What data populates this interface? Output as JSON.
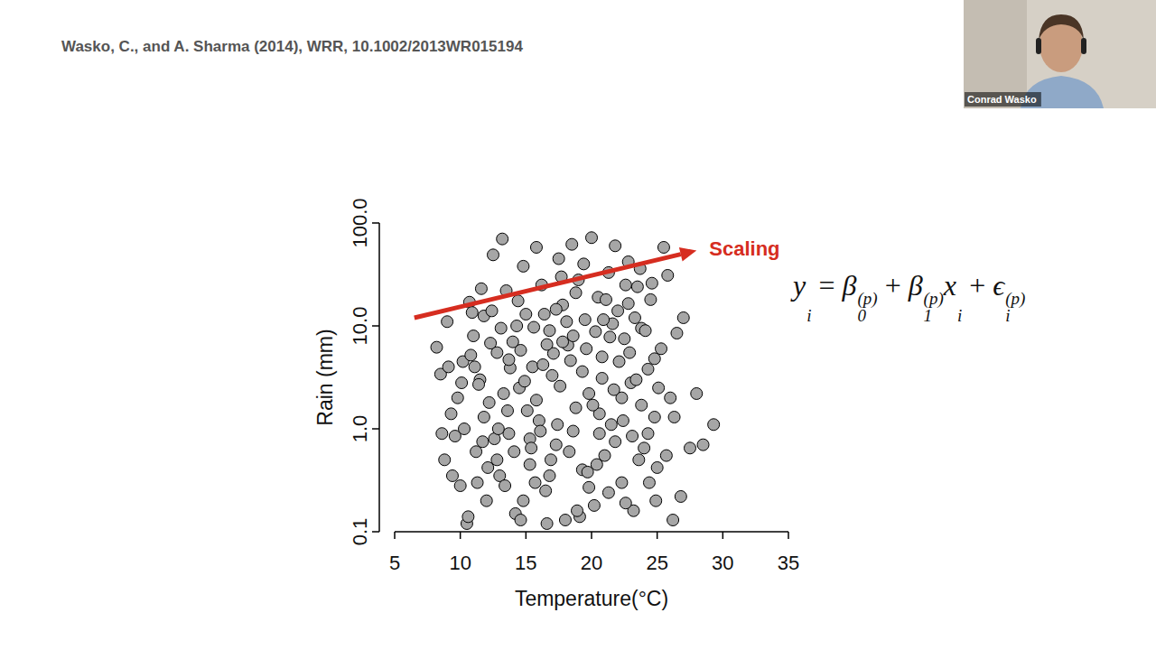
{
  "header": {
    "citation": "Wasko, C., and A. Sharma (2014), WRR, 10.1002/2013WR015194"
  },
  "speaker": {
    "name": "Conrad Wasko"
  },
  "equation": [
    {
      "text": "y",
      "sub": "i"
    },
    {
      "text": " = "
    },
    {
      "text": "β",
      "sub": "0",
      "sup": "(p)"
    },
    {
      "text": " + "
    },
    {
      "text": "β",
      "sub": "1",
      "sup": "(p)"
    },
    {
      "text": "x",
      "sub": "i"
    },
    {
      "text": " + "
    },
    {
      "text": "ϵ",
      "sub": "i",
      "sup": "(p)"
    }
  ],
  "chart_data": {
    "type": "scatter",
    "x_label": "Temperature(°C)",
    "y_label": "Rain (mm)",
    "log": "y",
    "color": "#a6a6a6",
    "marker": "circle",
    "grid": false,
    "xlim": [
      5,
      35
    ],
    "ylim": [
      0.1,
      100
    ],
    "xticks": [
      5,
      10,
      15,
      20,
      25,
      30,
      35
    ],
    "yticks": [
      {
        "value": 0.1,
        "label": "0.1"
      },
      {
        "value": 1,
        "label": "1.0"
      },
      {
        "value": 10,
        "label": "10.0"
      },
      {
        "value": 100,
        "label": "100.0"
      }
    ],
    "annotation": {
      "text": "Scaling",
      "color": "#d62d20",
      "x": [
        6.5,
        28
      ],
      "y": [
        12,
        54
      ]
    },
    "x": [
      8.2,
      8.5,
      8.8,
      9.0,
      9.3,
      9.6,
      9.8,
      10.0,
      10.2,
      10.5,
      10.7,
      11.0,
      11.2,
      11.5,
      11.8,
      12.0,
      12.2,
      12.5,
      12.8,
      13.0,
      13.2,
      13.5,
      13.7,
      14.0,
      14.2,
      14.5,
      14.8,
      15.0,
      15.3,
      15.5,
      15.8,
      16.0,
      16.2,
      16.5,
      16.8,
      17.0,
      17.3,
      17.5,
      17.8,
      18.0,
      18.2,
      18.5,
      18.8,
      19.0,
      19.3,
      19.5,
      19.8,
      20.0,
      20.2,
      20.5,
      20.8,
      21.0,
      21.3,
      21.5,
      21.8,
      22.0,
      22.3,
      22.5,
      22.8,
      23.0,
      23.2,
      23.5,
      23.8,
      24.0,
      24.3,
      24.5,
      24.8,
      25.0,
      25.3,
      25.5,
      25.8,
      26.0,
      26.2,
      26.5,
      26.8,
      27.0,
      27.5,
      28.0,
      28.5,
      29.3,
      10.3,
      11.3,
      12.3,
      13.3,
      14.3,
      15.3,
      16.3,
      17.3,
      18.3,
      19.3,
      20.3,
      21.3,
      22.3,
      23.3,
      24.3,
      10.8,
      11.8,
      12.8,
      13.8,
      14.8,
      15.8,
      16.8,
      17.8,
      18.8,
      19.8,
      20.8,
      21.8,
      22.8,
      23.8,
      24.8,
      9.4,
      10.6,
      11.6,
      12.6,
      13.6,
      14.6,
      15.6,
      16.6,
      17.6,
      18.6,
      19.6,
      20.6,
      21.6,
      22.6,
      23.6,
      24.6,
      11.4,
      12.4,
      13.4,
      14.4,
      15.4,
      16.4,
      17.4,
      18.4,
      19.4,
      20.4,
      21.4,
      22.4,
      23.4,
      24.4,
      10.1,
      11.1,
      12.1,
      13.1,
      14.1,
      15.1,
      16.1,
      17.1,
      18.1,
      19.1,
      20.1,
      21.1,
      22.1,
      23.1,
      24.1,
      25.1,
      9.1,
      10.9,
      12.9,
      14.9,
      16.9,
      18.9,
      20.9,
      22.9,
      24.9,
      11.7,
      13.7,
      15.7,
      17.7,
      19.7,
      21.7,
      23.7,
      25.7,
      26.3,
      8.6,
      14.6,
      16.6,
      18.6,
      20.6,
      22.6
    ],
    "values": [
      6.2,
      3.4,
      0.5,
      11.0,
      1.4,
      0.85,
      2.0,
      0.28,
      4.5,
      0.12,
      17.0,
      8.0,
      0.6,
      3.0,
      12.5,
      0.2,
      1.8,
      49.0,
      5.5,
      0.35,
      70.0,
      22.0,
      0.9,
      7.0,
      0.15,
      2.5,
      38.0,
      13.0,
      0.45,
      4.0,
      58.0,
      1.2,
      25.0,
      0.25,
      9.0,
      3.3,
      0.7,
      45.0,
      16.0,
      0.13,
      6.5,
      62.0,
      1.6,
      28.0,
      0.4,
      11.5,
      2.2,
      72.0,
      0.18,
      19.0,
      5.0,
      0.55,
      33.0,
      1.1,
      60.0,
      14.0,
      0.3,
      7.5,
      42.0,
      2.8,
      0.16,
      24.0,
      9.5,
      0.65,
      3.8,
      18.0,
      1.3,
      0.42,
      6.0,
      58.0,
      31.0,
      2.0,
      0.13,
      8.5,
      0.22,
      12.0,
      0.65,
      2.2,
      0.7,
      1.1,
      1.0,
      0.3,
      6.8,
      2.2,
      10.0,
      0.8,
      4.2,
      14.5,
      0.6,
      3.6,
      8.8,
      0.24,
      2.0,
      12.0,
      0.9,
      5.2,
      1.3,
      0.5,
      3.9,
      0.2,
      1.9,
      0.35,
      7.0,
      21.0,
      0.27,
      3.1,
      0.75,
      16.5,
      1.7,
      4.8,
      0.35,
      0.14,
      23.0,
      0.8,
      1.5,
      5.8,
      9.7,
      0.12,
      2.6,
      0.95,
      6.0,
      1.4,
      10.5,
      0.19,
      0.5,
      26.0,
      2.7,
      14.0,
      0.28,
      17.5,
      0.65,
      13.0,
      1.1,
      4.6,
      40.0,
      0.45,
      7.8,
      1.2,
      3.0,
      0.3,
      2.8,
      4.0,
      0.42,
      9.5,
      0.6,
      1.5,
      0.95,
      5.4,
      11.0,
      0.14,
      1.7,
      18.0,
      4.5,
      0.85,
      9.0,
      2.5,
      4.0,
      13.5,
      1.0,
      2.9,
      0.5,
      0.16,
      11.5,
      5.5,
      0.2,
      0.75,
      4.7,
      0.3,
      30.0,
      0.38,
      2.4,
      36.0,
      0.55,
      1.3,
      0.9,
      0.13,
      6.6,
      8.0,
      0.9,
      25.0
    ]
  }
}
